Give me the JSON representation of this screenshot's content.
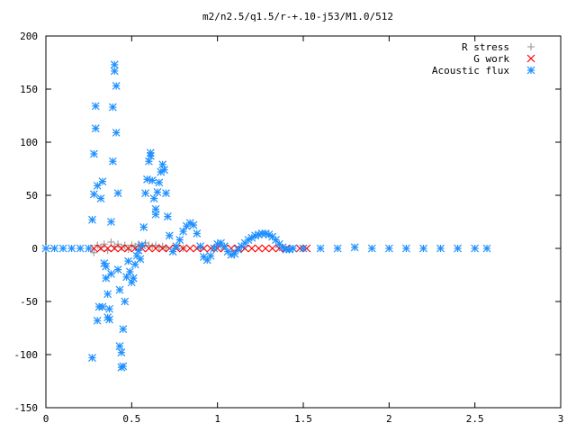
{
  "chart_data": {
    "type": "scatter",
    "title": "m2/n2.5/q1.5/r-+.10-j53/M1.0/512",
    "xlabel": "",
    "ylabel": "",
    "xlim": [
      0,
      3
    ],
    "ylim": [
      -150,
      200
    ],
    "xticks": [
      "0",
      "0.5",
      "1",
      "1.5",
      "2",
      "2.5",
      "3"
    ],
    "yticks": [
      "200",
      "150",
      "100",
      "50",
      "0",
      "-50",
      "-100",
      "-150"
    ],
    "grid": false,
    "legend_position": "top-right",
    "series": [
      {
        "name": "R stress",
        "marker": "plus",
        "color": "#a0a0a0",
        "points": [
          [
            0.28,
            -4
          ],
          [
            0.3,
            3
          ],
          [
            0.32,
            1
          ],
          [
            0.34,
            4
          ],
          [
            0.36,
            -2
          ],
          [
            0.38,
            6
          ],
          [
            0.4,
            2
          ],
          [
            0.42,
            4
          ],
          [
            0.44,
            1
          ],
          [
            0.46,
            3
          ],
          [
            0.48,
            -1
          ],
          [
            0.5,
            3
          ],
          [
            0.52,
            2
          ],
          [
            0.54,
            4
          ],
          [
            0.56,
            3
          ],
          [
            0.58,
            5
          ],
          [
            0.6,
            3
          ],
          [
            0.62,
            2
          ],
          [
            0.64,
            3
          ],
          [
            0.66,
            1
          ],
          [
            0.68,
            2
          ],
          [
            0.7,
            0.5
          ],
          [
            0.75,
            0.3
          ],
          [
            0.8,
            0.2
          ],
          [
            0.9,
            0.1
          ]
        ]
      },
      {
        "name": "G work",
        "marker": "x",
        "color": "#ff0000",
        "points": [
          [
            0.28,
            0
          ],
          [
            0.32,
            0
          ],
          [
            0.36,
            0
          ],
          [
            0.4,
            0
          ],
          [
            0.44,
            0
          ],
          [
            0.48,
            0
          ],
          [
            0.52,
            0
          ],
          [
            0.56,
            0
          ],
          [
            0.6,
            0
          ],
          [
            0.64,
            0
          ],
          [
            0.68,
            0
          ],
          [
            0.72,
            0
          ],
          [
            0.76,
            0
          ],
          [
            0.8,
            0
          ],
          [
            0.84,
            0
          ],
          [
            0.88,
            0
          ],
          [
            0.92,
            0
          ],
          [
            0.96,
            0
          ],
          [
            1.0,
            0
          ],
          [
            1.04,
            0
          ],
          [
            1.08,
            0
          ],
          [
            1.12,
            0
          ],
          [
            1.16,
            0
          ],
          [
            1.2,
            0
          ],
          [
            1.24,
            0
          ],
          [
            1.28,
            0
          ],
          [
            1.32,
            0
          ],
          [
            1.36,
            0
          ],
          [
            1.4,
            0
          ],
          [
            1.44,
            0
          ],
          [
            1.48,
            0
          ],
          [
            1.52,
            0
          ]
        ]
      },
      {
        "name": "Acoustic flux",
        "marker": "star",
        "color": "#1e90ff",
        "points": [
          [
            0.0,
            0
          ],
          [
            0.05,
            0
          ],
          [
            0.1,
            0
          ],
          [
            0.15,
            0
          ],
          [
            0.2,
            0
          ],
          [
            0.25,
            0
          ],
          [
            0.27,
            27
          ],
          [
            0.27,
            -103
          ],
          [
            0.28,
            51
          ],
          [
            0.28,
            89
          ],
          [
            0.29,
            113
          ],
          [
            0.29,
            134
          ],
          [
            0.3,
            59
          ],
          [
            0.3,
            -68
          ],
          [
            0.31,
            -55
          ],
          [
            0.32,
            47
          ],
          [
            0.33,
            63
          ],
          [
            0.33,
            -55
          ],
          [
            0.34,
            -14
          ],
          [
            0.35,
            -17
          ],
          [
            0.35,
            -28
          ],
          [
            0.36,
            -43
          ],
          [
            0.36,
            -65
          ],
          [
            0.37,
            -67
          ],
          [
            0.37,
            -57
          ],
          [
            0.38,
            25
          ],
          [
            0.38,
            -24
          ],
          [
            0.39,
            82
          ],
          [
            0.39,
            133
          ],
          [
            0.4,
            167
          ],
          [
            0.4,
            173
          ],
          [
            0.41,
            153
          ],
          [
            0.41,
            109
          ],
          [
            0.42,
            52
          ],
          [
            0.42,
            -20
          ],
          [
            0.43,
            -39
          ],
          [
            0.43,
            -92
          ],
          [
            0.44,
            -98
          ],
          [
            0.44,
            -112
          ],
          [
            0.45,
            -111
          ],
          [
            0.45,
            -76
          ],
          [
            0.46,
            -50
          ],
          [
            0.47,
            -27
          ],
          [
            0.48,
            -12
          ],
          [
            0.49,
            -22
          ],
          [
            0.5,
            -32
          ],
          [
            0.51,
            -28
          ],
          [
            0.52,
            -15
          ],
          [
            0.53,
            -7
          ],
          [
            0.54,
            -2
          ],
          [
            0.55,
            -10
          ],
          [
            0.56,
            3
          ],
          [
            0.57,
            20
          ],
          [
            0.58,
            52
          ],
          [
            0.59,
            65
          ],
          [
            0.6,
            82
          ],
          [
            0.61,
            90
          ],
          [
            0.61,
            87
          ],
          [
            0.62,
            64
          ],
          [
            0.63,
            47
          ],
          [
            0.64,
            32
          ],
          [
            0.64,
            37
          ],
          [
            0.65,
            53
          ],
          [
            0.66,
            62
          ],
          [
            0.67,
            72
          ],
          [
            0.68,
            79
          ],
          [
            0.69,
            74
          ],
          [
            0.7,
            52
          ],
          [
            0.71,
            30
          ],
          [
            0.72,
            12
          ],
          [
            0.74,
            -3
          ],
          [
            0.76,
            2
          ],
          [
            0.78,
            8
          ],
          [
            0.8,
            16
          ],
          [
            0.82,
            21
          ],
          [
            0.84,
            24
          ],
          [
            0.86,
            22
          ],
          [
            0.88,
            14
          ],
          [
            0.9,
            2
          ],
          [
            0.92,
            -8
          ],
          [
            0.94,
            -11
          ],
          [
            0.96,
            -7
          ],
          [
            0.98,
            0
          ],
          [
            1.0,
            4
          ],
          [
            1.02,
            5
          ],
          [
            1.04,
            2
          ],
          [
            1.06,
            -3
          ],
          [
            1.08,
            -6
          ],
          [
            1.1,
            -5
          ],
          [
            1.12,
            -1
          ],
          [
            1.14,
            2
          ],
          [
            1.16,
            5
          ],
          [
            1.18,
            8
          ],
          [
            1.2,
            10
          ],
          [
            1.22,
            12
          ],
          [
            1.24,
            13
          ],
          [
            1.26,
            14
          ],
          [
            1.28,
            14
          ],
          [
            1.3,
            13
          ],
          [
            1.32,
            11
          ],
          [
            1.34,
            8
          ],
          [
            1.36,
            4
          ],
          [
            1.38,
            1
          ],
          [
            1.4,
            -1
          ],
          [
            1.42,
            -1
          ],
          [
            1.44,
            0
          ],
          [
            1.5,
            0
          ],
          [
            1.6,
            0
          ],
          [
            1.7,
            0
          ],
          [
            1.8,
            1
          ],
          [
            1.9,
            0
          ],
          [
            2.0,
            0
          ],
          [
            2.1,
            0
          ],
          [
            2.2,
            0
          ],
          [
            2.3,
            0
          ],
          [
            2.4,
            0
          ],
          [
            2.5,
            0
          ],
          [
            2.57,
            0
          ]
        ]
      }
    ]
  }
}
